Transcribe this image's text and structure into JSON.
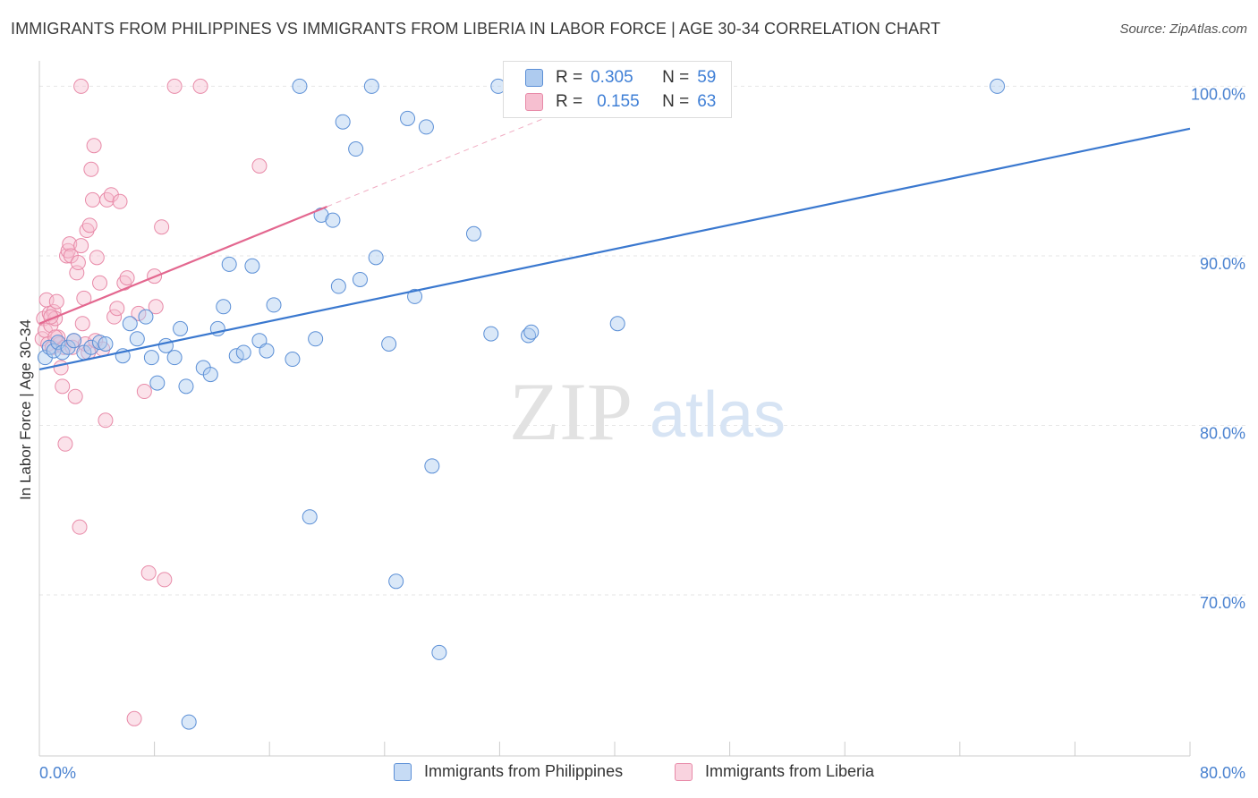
{
  "title": "IMMIGRANTS FROM PHILIPPINES VS IMMIGRANTS FROM LIBERIA IN LABOR FORCE | AGE 30-34 CORRELATION CHART",
  "source": "Source: ZipAtlas.com",
  "watermark": {
    "zip": "ZIP",
    "atlas": "atlas"
  },
  "legend": {
    "r_label": "R =",
    "n_label": "N =",
    "rows": [
      {
        "r": "0.305",
        "n": "59"
      },
      {
        "r": "0.155",
        "n": "63"
      }
    ]
  },
  "colors": {
    "blue_fill": "#aecbef",
    "blue_stroke": "#5b8fd6",
    "blue_line": "#3a78cf",
    "pink_fill": "#f6bfd0",
    "pink_stroke": "#e88aa8",
    "pink_line": "#e3678f",
    "tick_label": "#4a82d0"
  },
  "chart_data": {
    "type": "scatter",
    "title": "IMMIGRANTS FROM PHILIPPINES VS IMMIGRANTS FROM LIBERIA IN LABOR FORCE | AGE 30-34 CORRELATION CHART",
    "xlabel": "",
    "ylabel": "In Labor Force | Age 30-34",
    "xlim": [
      0,
      80
    ],
    "ylim": [
      60.5,
      101.5
    ],
    "x_tick_labels": [
      "0.0%",
      "80.0%"
    ],
    "y_ticks": [
      70,
      80,
      90,
      100
    ],
    "y_tick_labels": [
      "70.0%",
      "80.0%",
      "90.0%",
      "100.0%"
    ],
    "grid": true,
    "legend_position": "top-center",
    "series": [
      {
        "name": "Immigrants from Philippines",
        "trend": {
          "x": [
            0,
            80
          ],
          "y": [
            83.3,
            97.5
          ]
        },
        "points": [
          [
            0.4,
            84.0
          ],
          [
            0.7,
            84.6
          ],
          [
            1.0,
            84.4
          ],
          [
            1.3,
            84.9
          ],
          [
            1.6,
            84.3
          ],
          [
            2.0,
            84.6
          ],
          [
            2.4,
            85.0
          ],
          [
            3.1,
            84.3
          ],
          [
            3.6,
            84.6
          ],
          [
            4.2,
            84.9
          ],
          [
            4.6,
            84.8
          ],
          [
            5.8,
            84.1
          ],
          [
            6.3,
            86.0
          ],
          [
            6.8,
            85.1
          ],
          [
            7.4,
            86.4
          ],
          [
            7.8,
            84.0
          ],
          [
            8.2,
            82.5
          ],
          [
            8.8,
            84.7
          ],
          [
            9.4,
            84.0
          ],
          [
            9.8,
            85.7
          ],
          [
            10.2,
            82.3
          ],
          [
            11.4,
            83.4
          ],
          [
            11.9,
            83.0
          ],
          [
            12.4,
            85.7
          ],
          [
            12.8,
            87.0
          ],
          [
            13.2,
            89.5
          ],
          [
            13.7,
            84.1
          ],
          [
            14.2,
            84.3
          ],
          [
            14.8,
            89.4
          ],
          [
            15.3,
            85.0
          ],
          [
            15.8,
            84.4
          ],
          [
            16.3,
            87.1
          ],
          [
            17.6,
            83.9
          ],
          [
            18.1,
            100.0
          ],
          [
            18.8,
            74.6
          ],
          [
            19.2,
            85.1
          ],
          [
            19.6,
            92.4
          ],
          [
            20.4,
            92.1
          ],
          [
            20.8,
            88.2
          ],
          [
            21.1,
            97.9
          ],
          [
            22.0,
            96.3
          ],
          [
            22.3,
            88.6
          ],
          [
            23.1,
            100.0
          ],
          [
            23.4,
            89.9
          ],
          [
            24.3,
            84.8
          ],
          [
            24.8,
            70.8
          ],
          [
            25.6,
            98.1
          ],
          [
            26.1,
            87.6
          ],
          [
            26.9,
            97.6
          ],
          [
            27.3,
            77.6
          ],
          [
            27.8,
            66.6
          ],
          [
            30.2,
            91.3
          ],
          [
            31.4,
            85.4
          ],
          [
            31.9,
            100.0
          ],
          [
            34.0,
            85.3
          ],
          [
            34.2,
            85.5
          ],
          [
            40.2,
            86.0
          ],
          [
            10.4,
            62.5
          ],
          [
            66.6,
            100.0
          ]
        ]
      },
      {
        "name": "Immigrants from Liberia",
        "trend": {
          "x": [
            0,
            20
          ],
          "y": [
            86.0,
            92.9
          ]
        },
        "trend_extension": {
          "x": [
            20,
            40
          ],
          "y": [
            92.9,
            99.8
          ]
        },
        "points": [
          [
            0.2,
            85.1
          ],
          [
            0.3,
            86.3
          ],
          [
            0.4,
            85.6
          ],
          [
            0.5,
            87.4
          ],
          [
            0.6,
            84.8
          ],
          [
            0.7,
            86.6
          ],
          [
            0.8,
            85.9
          ],
          [
            0.9,
            84.6
          ],
          [
            1.0,
            86.7
          ],
          [
            1.1,
            86.3
          ],
          [
            1.2,
            87.3
          ],
          [
            1.3,
            85.2
          ],
          [
            1.4,
            84.8
          ],
          [
            1.5,
            83.4
          ],
          [
            1.6,
            82.3
          ],
          [
            1.7,
            84.6
          ],
          [
            1.8,
            78.9
          ],
          [
            1.9,
            90.0
          ],
          [
            2.0,
            90.3
          ],
          [
            2.1,
            90.7
          ],
          [
            2.2,
            90.0
          ],
          [
            2.3,
            84.6
          ],
          [
            2.4,
            85.0
          ],
          [
            2.5,
            81.7
          ],
          [
            2.6,
            89.0
          ],
          [
            2.7,
            89.6
          ],
          [
            2.8,
            74.0
          ],
          [
            2.9,
            90.6
          ],
          [
            3.0,
            86.0
          ],
          [
            3.1,
            87.5
          ],
          [
            3.2,
            84.8
          ],
          [
            3.3,
            91.5
          ],
          [
            3.4,
            84.3
          ],
          [
            3.5,
            91.8
          ],
          [
            3.6,
            95.1
          ],
          [
            3.7,
            93.3
          ],
          [
            3.9,
            85.0
          ],
          [
            4.0,
            89.9
          ],
          [
            4.2,
            88.4
          ],
          [
            4.4,
            84.5
          ],
          [
            4.6,
            80.3
          ],
          [
            4.7,
            93.3
          ],
          [
            5.0,
            93.6
          ],
          [
            5.2,
            86.4
          ],
          [
            5.4,
            86.9
          ],
          [
            5.6,
            93.2
          ],
          [
            5.9,
            88.4
          ],
          [
            6.1,
            88.7
          ],
          [
            6.6,
            62.7
          ],
          [
            6.9,
            86.6
          ],
          [
            7.3,
            82.0
          ],
          [
            7.6,
            71.3
          ],
          [
            8.0,
            88.8
          ],
          [
            8.1,
            87.0
          ],
          [
            8.5,
            91.7
          ],
          [
            8.7,
            70.9
          ],
          [
            3.8,
            96.5
          ],
          [
            2.9,
            100.0
          ],
          [
            9.4,
            100.0
          ],
          [
            11.2,
            100.0
          ],
          [
            15.3,
            95.3
          ],
          [
            0.8,
            86.4
          ],
          [
            1.1,
            85.2
          ]
        ]
      }
    ]
  },
  "bottom_legend": [
    {
      "label": "Immigrants from Philippines"
    },
    {
      "label": "Immigrants from Liberia"
    }
  ]
}
